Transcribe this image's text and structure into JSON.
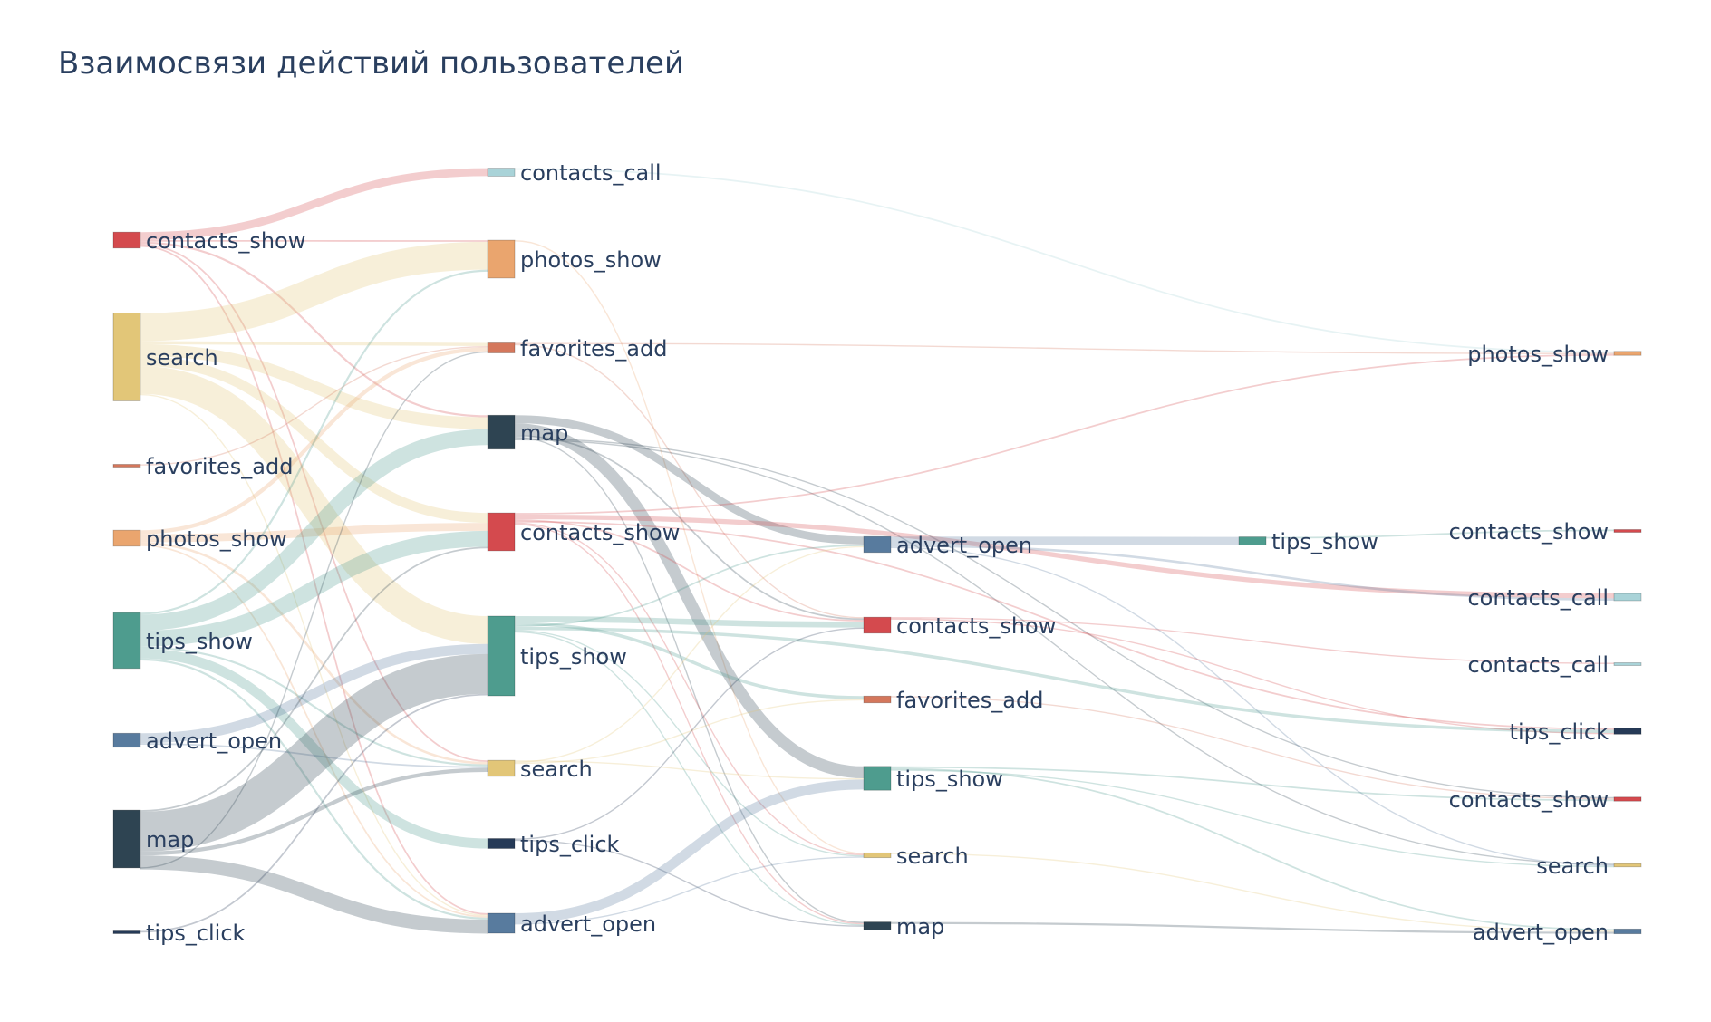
{
  "title": "Взаимосвязи действий пользователей",
  "chart_data": {
    "type": "sankey",
    "title": "Взаимосвязи действий пользователей",
    "colors": {
      "contacts_show": "#d44a4e",
      "search": "#e2c678",
      "favorites_add": "#d4775c",
      "photos_show": "#eaa56e",
      "tips_show": "#4e9c8e",
      "advert_open": "#587b9e",
      "map": "#2e4452",
      "tips_click": "#263a57",
      "contacts_call": "#a9d3d8"
    },
    "nodes": [
      {
        "id": "s1_contacts_show",
        "label": "contacts_show",
        "action": "contacts_show",
        "step": 1,
        "value": 4
      },
      {
        "id": "s1_search",
        "label": "search",
        "action": "search",
        "step": 1,
        "value": 22
      },
      {
        "id": "s1_favorites_add",
        "label": "favorites_add",
        "action": "favorites_add",
        "step": 1,
        "value": 0.3
      },
      {
        "id": "s1_photos_show",
        "label": "photos_show",
        "action": "photos_show",
        "step": 1,
        "value": 4
      },
      {
        "id": "s1_tips_show",
        "label": "tips_show",
        "action": "tips_show",
        "step": 1,
        "value": 14
      },
      {
        "id": "s1_advert_open",
        "label": "advert_open",
        "action": "advert_open",
        "step": 1,
        "value": 3.5
      },
      {
        "id": "s1_map",
        "label": "map",
        "action": "map",
        "step": 1,
        "value": 14.5
      },
      {
        "id": "s1_tips_click",
        "label": "tips_click",
        "action": "tips_click",
        "step": 1,
        "value": 0.4
      },
      {
        "id": "s2_contacts_call",
        "label": "contacts_call",
        "action": "contacts_call",
        "step": 2,
        "value": 2
      },
      {
        "id": "s2_photos_show",
        "label": "photos_show",
        "action": "photos_show",
        "step": 2,
        "value": 9.5
      },
      {
        "id": "s2_favorites_add",
        "label": "favorites_add",
        "action": "favorites_add",
        "step": 2,
        "value": 2.5
      },
      {
        "id": "s2_map",
        "label": "map",
        "action": "map",
        "step": 2,
        "value": 8.5
      },
      {
        "id": "s2_contacts_show",
        "label": "contacts_show",
        "action": "contacts_show",
        "step": 2,
        "value": 9.5
      },
      {
        "id": "s2_tips_show",
        "label": "tips_show",
        "action": "tips_show",
        "step": 2,
        "value": 20
      },
      {
        "id": "s2_search",
        "label": "search",
        "action": "search",
        "step": 2,
        "value": 4
      },
      {
        "id": "s2_tips_click",
        "label": "tips_click",
        "action": "tips_click",
        "step": 2,
        "value": 2.5
      },
      {
        "id": "s2_advert_open",
        "label": "advert_open",
        "action": "advert_open",
        "step": 2,
        "value": 5
      },
      {
        "id": "s3_advert_open",
        "label": "advert_open",
        "action": "advert_open",
        "step": 3,
        "value": 4
      },
      {
        "id": "s3_contacts_show",
        "label": "contacts_show",
        "action": "contacts_show",
        "step": 3,
        "value": 4
      },
      {
        "id": "s3_favorites_add",
        "label": "favorites_add",
        "action": "favorites_add",
        "step": 3,
        "value": 1.7
      },
      {
        "id": "s3_tips_show",
        "label": "tips_show",
        "action": "tips_show",
        "step": 3,
        "value": 6
      },
      {
        "id": "s3_search",
        "label": "search",
        "action": "search",
        "step": 3,
        "value": 1.2
      },
      {
        "id": "s3_map",
        "label": "map",
        "action": "map",
        "step": 3,
        "value": 2
      },
      {
        "id": "s4_tips_show",
        "label": "tips_show",
        "action": "tips_show",
        "step": 4,
        "value": 2
      },
      {
        "id": "s5_photos_show",
        "label": "photos_show",
        "action": "photos_show",
        "step": 5,
        "value": 1
      },
      {
        "id": "s5_contacts_show",
        "label": "contacts_show",
        "action": "contacts_show",
        "step": 5,
        "value": 0.4
      },
      {
        "id": "s5_contacts_call_a",
        "label": "contacts_call",
        "action": "contacts_call",
        "step": 5,
        "value": 1.8
      },
      {
        "id": "s5_contacts_call_b",
        "label": "contacts_call",
        "action": "contacts_call",
        "step": 5,
        "value": 0.6
      },
      {
        "id": "s5_tips_click",
        "label": "tips_click",
        "action": "tips_click",
        "step": 5,
        "value": 1.5
      },
      {
        "id": "s5_contacts_show_b",
        "label": "contacts_show",
        "action": "contacts_show",
        "step": 5,
        "value": 1
      },
      {
        "id": "s5_search",
        "label": "search",
        "action": "search",
        "step": 5,
        "value": 0.8
      },
      {
        "id": "s5_advert_open",
        "label": "advert_open",
        "action": "advert_open",
        "step": 5,
        "value": 1.2
      }
    ],
    "links": [
      {
        "source": "s1_contacts_show",
        "target": "s2_contacts_call",
        "value": 2
      },
      {
        "source": "s1_contacts_show",
        "target": "s2_photos_show",
        "value": 0.4
      },
      {
        "source": "s1_contacts_show",
        "target": "s2_map",
        "value": 0.5
      },
      {
        "source": "s1_contacts_show",
        "target": "s2_search",
        "value": 0.4
      },
      {
        "source": "s1_contacts_show",
        "target": "s2_advert_open",
        "value": 0.4
      },
      {
        "source": "s1_search",
        "target": "s2_photos_show",
        "value": 7
      },
      {
        "source": "s1_search",
        "target": "s2_favorites_add",
        "value": 0.8
      },
      {
        "source": "s1_search",
        "target": "s2_map",
        "value": 3
      },
      {
        "source": "s1_search",
        "target": "s2_contacts_show",
        "value": 2.5
      },
      {
        "source": "s1_search",
        "target": "s2_tips_show",
        "value": 7
      },
      {
        "source": "s1_search",
        "target": "s2_advert_open",
        "value": 0.3
      },
      {
        "source": "s1_favorites_add",
        "target": "s2_favorites_add",
        "value": 0.3
      },
      {
        "source": "s1_photos_show",
        "target": "s2_favorites_add",
        "value": 1
      },
      {
        "source": "s1_photos_show",
        "target": "s2_contacts_show",
        "value": 2
      },
      {
        "source": "s1_photos_show",
        "target": "s2_search",
        "value": 0.6
      },
      {
        "source": "s1_photos_show",
        "target": "s2_advert_open",
        "value": 0.4
      },
      {
        "source": "s1_tips_show",
        "target": "s2_photos_show",
        "value": 0.5
      },
      {
        "source": "s1_tips_show",
        "target": "s2_map",
        "value": 4
      },
      {
        "source": "s1_tips_show",
        "target": "s2_contacts_show",
        "value": 4
      },
      {
        "source": "s1_tips_show",
        "target": "s2_search",
        "value": 0.5
      },
      {
        "source": "s1_tips_show",
        "target": "s2_tips_click",
        "value": 2.5
      },
      {
        "source": "s1_tips_show",
        "target": "s2_advert_open",
        "value": 0.5
      },
      {
        "source": "s1_advert_open",
        "target": "s2_tips_show",
        "value": 2.5
      },
      {
        "source": "s1_advert_open",
        "target": "s2_search",
        "value": 0.4
      },
      {
        "source": "s1_map",
        "target": "s2_contacts_show",
        "value": 0.4
      },
      {
        "source": "s1_map",
        "target": "s2_tips_show",
        "value": 10
      },
      {
        "source": "s1_map",
        "target": "s2_search",
        "value": 1
      },
      {
        "source": "s1_map",
        "target": "s2_advert_open",
        "value": 3.5
      },
      {
        "source": "s1_map",
        "target": "s2_favorites_add",
        "value": 0.3
      },
      {
        "source": "s1_tips_click",
        "target": "s2_tips_show",
        "value": 0.4
      },
      {
        "source": "s2_contacts_call",
        "target": "s5_photos_show",
        "value": 0.4
      },
      {
        "source": "s2_photos_show",
        "target": "s3_search",
        "value": 0.3
      },
      {
        "source": "s2_favorites_add",
        "target": "s5_photos_show",
        "value": 0.3
      },
      {
        "source": "s2_favorites_add",
        "target": "s3_contacts_show",
        "value": 0.3
      },
      {
        "source": "s2_map",
        "target": "s3_advert_open",
        "value": 2
      },
      {
        "source": "s2_map",
        "target": "s3_tips_show",
        "value": 3
      },
      {
        "source": "s2_map",
        "target": "s3_contacts_show",
        "value": 0.4
      },
      {
        "source": "s2_map",
        "target": "s3_map",
        "value": 0.3
      },
      {
        "source": "s2_map",
        "target": "s5_contacts_show_b",
        "value": 0.3
      },
      {
        "source": "s2_map",
        "target": "s5_search",
        "value": 0.3
      },
      {
        "source": "s2_contacts_show",
        "target": "s5_photos_show",
        "value": 0.4
      },
      {
        "source": "s2_contacts_show",
        "target": "s5_contacts_call_a",
        "value": 1.2
      },
      {
        "source": "s2_contacts_show",
        "target": "s3_contacts_show",
        "value": 0.4
      },
      {
        "source": "s2_contacts_show",
        "target": "s5_tips_click",
        "value": 0.4
      },
      {
        "source": "s2_contacts_show",
        "target": "s3_search",
        "value": 0.3
      },
      {
        "source": "s2_contacts_show",
        "target": "s3_map",
        "value": 0.3
      },
      {
        "source": "s2_tips_show",
        "target": "s3_contacts_show",
        "value": 1.5
      },
      {
        "source": "s2_tips_show",
        "target": "s3_favorites_add",
        "value": 0.8
      },
      {
        "source": "s2_tips_show",
        "target": "s3_advert_open",
        "value": 0.4
      },
      {
        "source": "s2_tips_show",
        "target": "s5_tips_click",
        "value": 0.8
      },
      {
        "source": "s2_tips_show",
        "target": "s3_search",
        "value": 0.3
      },
      {
        "source": "s2_tips_show",
        "target": "s3_map",
        "value": 0.3
      },
      {
        "source": "s2_search",
        "target": "s3_tips_show",
        "value": 0.3
      },
      {
        "source": "s2_search",
        "target": "s3_advert_open",
        "value": 0.3
      },
      {
        "source": "s2_search",
        "target": "s3_favorites_add",
        "value": 0.3
      },
      {
        "source": "s2_tips_click",
        "target": "s3_contacts_show",
        "value": 0.3
      },
      {
        "source": "s2_tips_click",
        "target": "s3_map",
        "value": 0.3
      },
      {
        "source": "s2_advert_open",
        "target": "s3_tips_show",
        "value": 2.5
      },
      {
        "source": "s2_advert_open",
        "target": "s3_search",
        "value": 0.3
      },
      {
        "source": "s3_advert_open",
        "target": "s4_tips_show",
        "value": 2
      },
      {
        "source": "s3_advert_open",
        "target": "s5_contacts_call_a",
        "value": 0.6
      },
      {
        "source": "s3_advert_open",
        "target": "s5_search",
        "value": 0.3
      },
      {
        "source": "s3_contacts_show",
        "target": "s5_contacts_call_b",
        "value": 0.3
      },
      {
        "source": "s3_contacts_show",
        "target": "s5_tips_click",
        "value": 0.3
      },
      {
        "source": "s3_favorites_add",
        "target": "s5_contacts_show_b",
        "value": 0.3
      },
      {
        "source": "s3_tips_show",
        "target": "s5_contacts_show_b",
        "value": 0.4
      },
      {
        "source": "s3_tips_show",
        "target": "s5_advert_open",
        "value": 0.4
      },
      {
        "source": "s3_tips_show",
        "target": "s5_search",
        "value": 0.3
      },
      {
        "source": "s3_search",
        "target": "s5_advert_open",
        "value": 0.3
      },
      {
        "source": "s3_map",
        "target": "s5_advert_open",
        "value": 0.5
      },
      {
        "source": "s4_tips_show",
        "target": "s5_contacts_show",
        "value": 0.4
      }
    ]
  }
}
